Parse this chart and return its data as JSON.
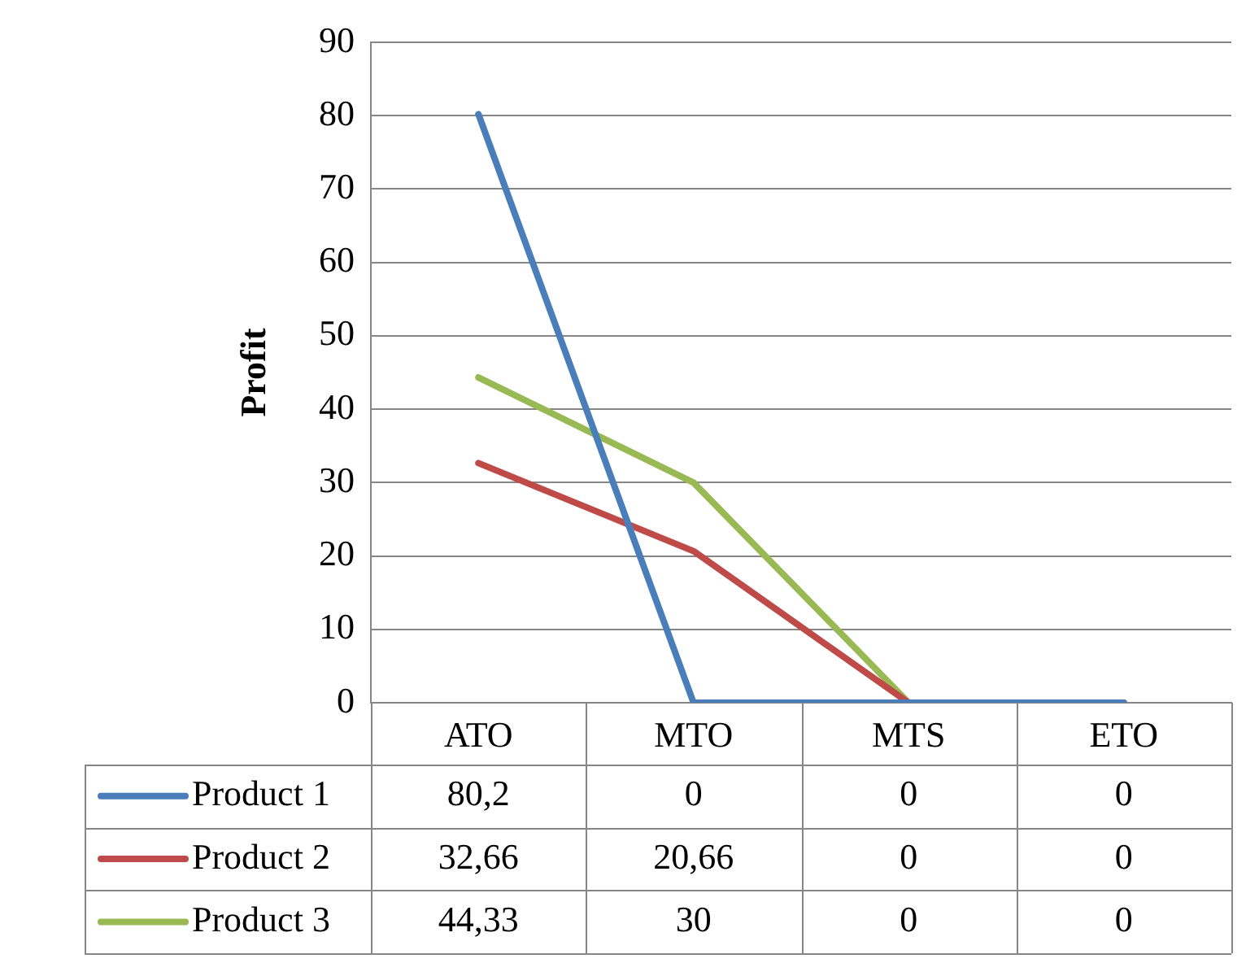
{
  "chart_data": {
    "type": "line",
    "ylabel": "Profit",
    "categories": [
      "ATO",
      "MTO",
      "MTS",
      "ETO"
    ],
    "ylim": [
      0,
      90
    ],
    "yticks": [
      0,
      10,
      20,
      30,
      40,
      50,
      60,
      70,
      80,
      90
    ],
    "grid": "y",
    "legend": "bottom left",
    "marker": "none",
    "line_style": "solid",
    "series": [
      {
        "name": "Product 1",
        "color": "#4a7ebb",
        "values": [
          80.2,
          0,
          0,
          0
        ],
        "value_labels": [
          "80,2",
          "0",
          "0",
          "0"
        ]
      },
      {
        "name": "Product 2",
        "color": "#be4b48",
        "values": [
          32.66,
          20.66,
          0,
          0
        ],
        "value_labels": [
          "32,66",
          "20,66",
          "0",
          "0"
        ]
      },
      {
        "name": "Product 3",
        "color": "#98b954",
        "values": [
          44.33,
          30,
          0,
          0
        ],
        "value_labels": [
          "44,33",
          "30",
          "0",
          "0"
        ]
      }
    ]
  }
}
